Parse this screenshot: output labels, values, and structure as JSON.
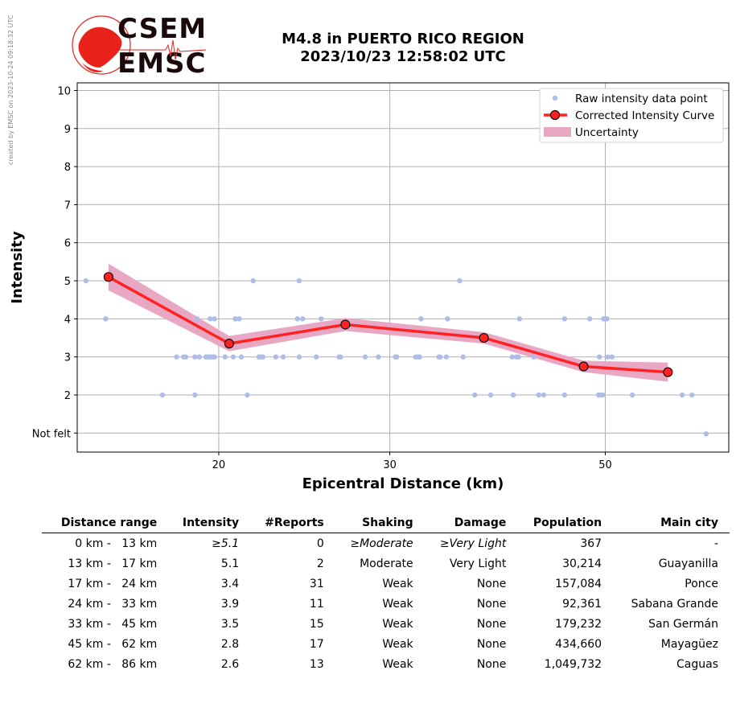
{
  "side_note": "created by EMSC on 2023-10-24 09:18:32 UTC",
  "logo": {
    "line1": "CSEM",
    "line2": "EMSC",
    "color": "#e8221b"
  },
  "title": {
    "line1": "M4.8 in PUERTO RICO REGION",
    "line2": "2023/10/23 12:58:02 UTC"
  },
  "chart_data": {
    "type": "scatter",
    "xlabel": "Epicentral Distance (km)",
    "ylabel": "Intensity",
    "x_scale": "log",
    "xlim": [
      14.3,
      67
    ],
    "ylim": [
      0.5,
      10.2
    ],
    "x_ticks": [
      {
        "value": 20,
        "label": "20"
      },
      {
        "value": 30,
        "label": "30"
      },
      {
        "value": 50,
        "label": "50"
      }
    ],
    "y_ticks": [
      {
        "value": 1,
        "label": "Not felt"
      },
      {
        "value": 2,
        "label": "2"
      },
      {
        "value": 3,
        "label": "3"
      },
      {
        "value": 4,
        "label": "4"
      },
      {
        "value": 5,
        "label": "5"
      },
      {
        "value": 6,
        "label": "6"
      },
      {
        "value": 7,
        "label": "7"
      },
      {
        "value": 8,
        "label": "8"
      },
      {
        "value": 9,
        "label": "9"
      },
      {
        "value": 10,
        "label": "10"
      }
    ],
    "grid": true,
    "legend_position": "top-right",
    "legend": [
      "Raw intensity data point",
      "Corrected Intensity Curve",
      "Uncertainty"
    ],
    "colors": {
      "raw": "#aebde8",
      "curve": "#ff2222",
      "marker_edge": "#111111",
      "band": "#e8a8c4"
    },
    "raw_points": [
      [
        14.6,
        5
      ],
      [
        15.3,
        4
      ],
      [
        17.5,
        2
      ],
      [
        18.1,
        3
      ],
      [
        18.4,
        3
      ],
      [
        18.5,
        3
      ],
      [
        18.9,
        2
      ],
      [
        18.9,
        3
      ],
      [
        19.0,
        4
      ],
      [
        19.1,
        3
      ],
      [
        19.4,
        3
      ],
      [
        19.5,
        3
      ],
      [
        19.6,
        4
      ],
      [
        19.6,
        3
      ],
      [
        19.7,
        3
      ],
      [
        19.8,
        4
      ],
      [
        19.8,
        3
      ],
      [
        20.3,
        3
      ],
      [
        20.7,
        3
      ],
      [
        20.8,
        4
      ],
      [
        21.0,
        4
      ],
      [
        21.1,
        3
      ],
      [
        21.4,
        2
      ],
      [
        21.7,
        5
      ],
      [
        22.0,
        3
      ],
      [
        22.1,
        3
      ],
      [
        22.2,
        3
      ],
      [
        22.9,
        3
      ],
      [
        23.3,
        3
      ],
      [
        24.1,
        4
      ],
      [
        24.2,
        5
      ],
      [
        24.2,
        3
      ],
      [
        24.4,
        4
      ],
      [
        25.2,
        3
      ],
      [
        25.5,
        4
      ],
      [
        26.6,
        3
      ],
      [
        26.7,
        3
      ],
      [
        28.3,
        3
      ],
      [
        29.2,
        3
      ],
      [
        30.4,
        3
      ],
      [
        30.5,
        3
      ],
      [
        31.9,
        3
      ],
      [
        32.1,
        3
      ],
      [
        32.2,
        3
      ],
      [
        32.3,
        4
      ],
      [
        33.7,
        3
      ],
      [
        33.8,
        3
      ],
      [
        34.3,
        3
      ],
      [
        34.4,
        4
      ],
      [
        35.4,
        5
      ],
      [
        35.7,
        3
      ],
      [
        36.7,
        2
      ],
      [
        38.1,
        2
      ],
      [
        40.1,
        3
      ],
      [
        40.2,
        2
      ],
      [
        40.5,
        3
      ],
      [
        40.7,
        3
      ],
      [
        40.8,
        4
      ],
      [
        42.2,
        3
      ],
      [
        42.7,
        2
      ],
      [
        43.2,
        2
      ],
      [
        45.4,
        2
      ],
      [
        45.4,
        4
      ],
      [
        48.2,
        4
      ],
      [
        49.2,
        2
      ],
      [
        49.3,
        3
      ],
      [
        49.4,
        2
      ],
      [
        49.7,
        2
      ],
      [
        49.8,
        4
      ],
      [
        50.2,
        4
      ],
      [
        50.3,
        3
      ],
      [
        50.8,
        3
      ],
      [
        53.3,
        2
      ],
      [
        60.0,
        2
      ],
      [
        61.4,
        2
      ],
      [
        63.5,
        0.98
      ]
    ],
    "curve": [
      [
        15.4,
        5.1
      ],
      [
        20.5,
        3.35
      ],
      [
        27.0,
        3.85
      ],
      [
        37.5,
        3.5
      ],
      [
        47.5,
        2.75
      ],
      [
        58.0,
        2.6
      ]
    ],
    "uncertainty": [
      [
        15.4,
        5.45,
        4.75
      ],
      [
        20.5,
        3.55,
        3.15
      ],
      [
        27.0,
        4.02,
        3.68
      ],
      [
        37.5,
        3.65,
        3.35
      ],
      [
        47.5,
        2.9,
        2.6
      ],
      [
        58.0,
        2.85,
        2.35
      ]
    ]
  },
  "table": {
    "headers": [
      "Distance range",
      "Intensity",
      "#Reports",
      "Shaking",
      "Damage",
      "Population",
      "Main city"
    ],
    "rows": [
      {
        "range": "0 km -   13 km",
        "intensity": "≥5.1",
        "reports": "0",
        "shaking": "≥Moderate",
        "damage": "≥Very Light",
        "population": "367",
        "city": "-",
        "italic": true
      },
      {
        "range": "13 km -   17 km",
        "intensity": "5.1",
        "reports": "2",
        "shaking": "Moderate",
        "damage": "Very Light",
        "population": "30,214",
        "city": "Guayanilla"
      },
      {
        "range": "17 km -   24 km",
        "intensity": "3.4",
        "reports": "31",
        "shaking": "Weak",
        "damage": "None",
        "population": "157,084",
        "city": "Ponce"
      },
      {
        "range": "24 km -   33 km",
        "intensity": "3.9",
        "reports": "11",
        "shaking": "Weak",
        "damage": "None",
        "population": "92,361",
        "city": "Sabana Grande"
      },
      {
        "range": "33 km -   45 km",
        "intensity": "3.5",
        "reports": "15",
        "shaking": "Weak",
        "damage": "None",
        "population": "179,232",
        "city": "San Germán"
      },
      {
        "range": "45 km -   62 km",
        "intensity": "2.8",
        "reports": "17",
        "shaking": "Weak",
        "damage": "None",
        "population": "434,660",
        "city": "Mayagüez"
      },
      {
        "range": "62 km -   86 km",
        "intensity": "2.6",
        "reports": "13",
        "shaking": "Weak",
        "damage": "None",
        "population": "1,049,732",
        "city": "Caguas"
      }
    ]
  }
}
